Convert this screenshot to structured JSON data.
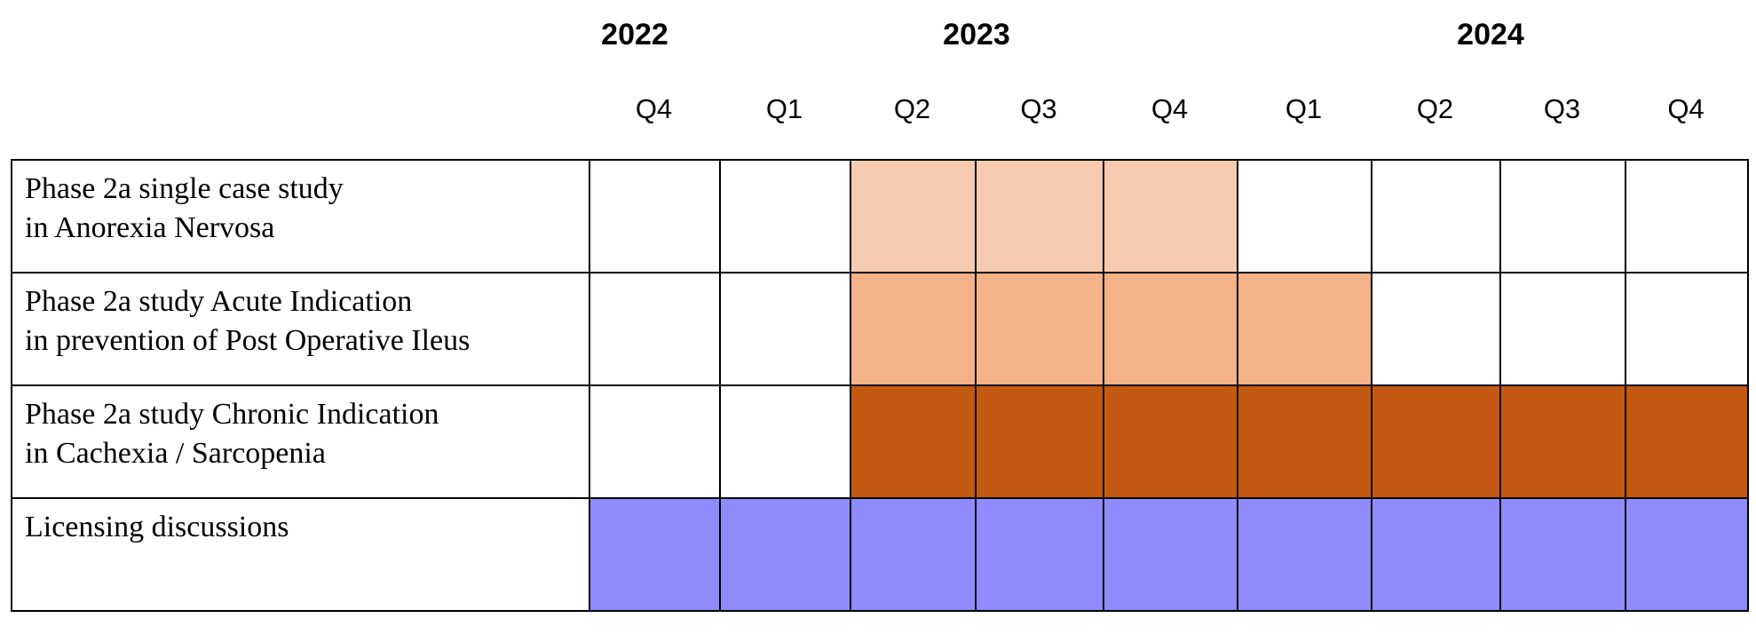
{
  "years": [
    {
      "label": "2022"
    },
    {
      "label": "2023"
    },
    {
      "label": "2024"
    }
  ],
  "quarters": [
    "Q4",
    "Q1",
    "Q2",
    "Q3",
    "Q4",
    "Q1",
    "Q2",
    "Q3",
    "Q4"
  ],
  "colors": {
    "light_peach": "#F7CBAF",
    "peach": "#F3B287",
    "burnt_orange": "#C45A12",
    "periwinkle": "#8E8CFD",
    "empty": "#FFFFFF"
  },
  "rows": [
    {
      "label_lines": [
        "Phase 2a  single case study",
        "in Anorexia Nervosa"
      ],
      "cells": [
        "empty",
        "empty",
        "light_peach",
        "light_peach",
        "light_peach",
        "empty",
        "empty",
        "empty",
        "empty"
      ]
    },
    {
      "label_lines": [
        "Phase 2a study Acute Indication",
        "in prevention of Post Operative Ileus"
      ],
      "cells": [
        "empty",
        "empty",
        "peach",
        "peach",
        "peach",
        "peach",
        "empty",
        "empty",
        "empty"
      ]
    },
    {
      "label_lines": [
        "Phase 2a study Chronic Indication",
        "in Cachexia / Sarcopenia"
      ],
      "cells": [
        "empty",
        "empty",
        "burnt_orange",
        "burnt_orange",
        "burnt_orange",
        "burnt_orange",
        "burnt_orange",
        "burnt_orange",
        "burnt_orange"
      ]
    },
    {
      "label_lines": [
        "Licensing discussions"
      ],
      "cells": [
        "periwinkle",
        "periwinkle",
        "periwinkle",
        "periwinkle",
        "periwinkle",
        "periwinkle",
        "periwinkle",
        "periwinkle",
        "periwinkle"
      ]
    }
  ]
}
